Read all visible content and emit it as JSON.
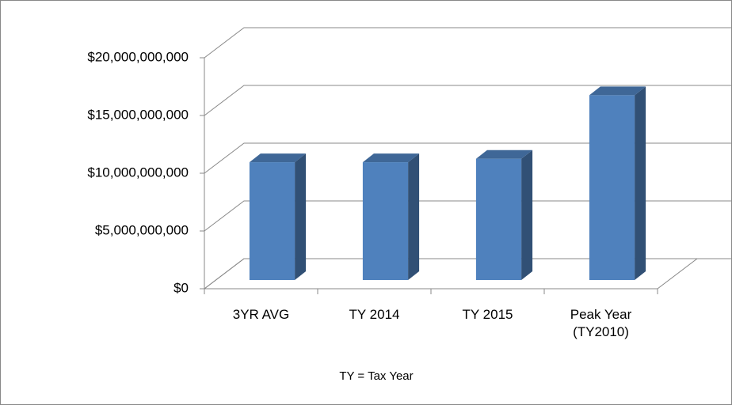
{
  "chart_data": {
    "type": "bar3d",
    "categories": [
      "3YR AVG",
      "TY 2014",
      "TY 2015",
      "Peak Year (TY2010)"
    ],
    "values": [
      10200000000,
      10200000000,
      10500000000,
      16000000000
    ],
    "color": "#4f81bd",
    "ylim": [
      0,
      20000000000
    ],
    "yticks": [
      {
        "value": 0,
        "label": "$0"
      },
      {
        "value": 5000000000,
        "label": "$5,000,000,000"
      },
      {
        "value": 10000000000,
        "label": "$10,000,000,000"
      },
      {
        "value": 15000000000,
        "label": "$15,000,000,000"
      },
      {
        "value": 20000000000,
        "label": "$20,000,000,000"
      }
    ],
    "grid": true,
    "annotation": "TY = Tax Year"
  }
}
